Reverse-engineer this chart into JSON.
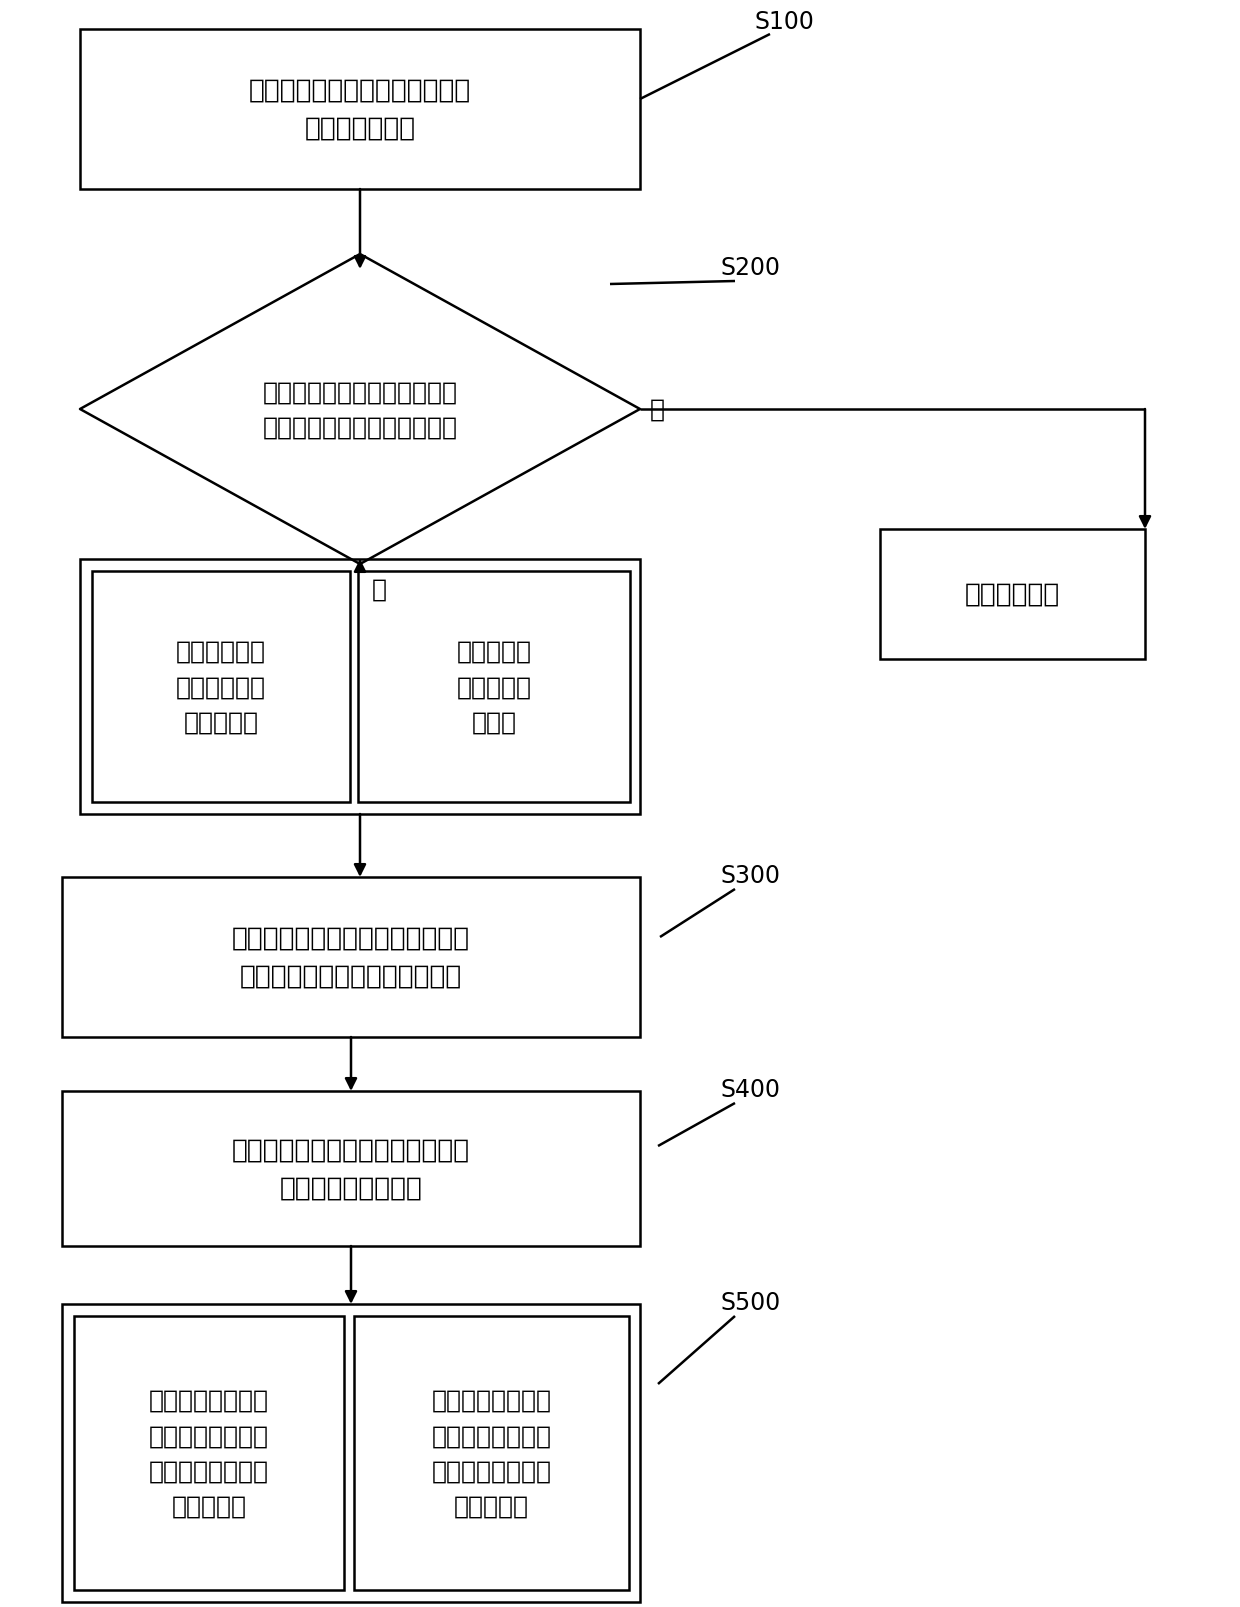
{
  "bg_color": "#ffffff",
  "line_color": "#000000",
  "text_color": "#000000",
  "s100_label": "S100",
  "s200_label": "S200",
  "s300_label": "S300",
  "s400_label": "S400",
  "s500_label": "S500",
  "box1_text": "获取电机模拟器端口的三相电流\n和直流母线电压",
  "diamond_text": "判断三相电流值与直流母线电\n压值是否超过预设的保护阈值",
  "yes_label": "是",
  "no_label": "否",
  "protect_box_text": "执行保护动作",
  "box_left_text": "计算电机模拟\n器应输出的等\n效反电动势",
  "box_right_text": "计算模拟目\n标电机的运\n行状态",
  "box3_text": "控制电机模拟器中的逆变器，使其\n输出与等效反电动势相等的电压",
  "box4_text": "将模拟目标电机的运行状态反馈给\n电机驱动器和上位机",
  "box5_left_text": "根据模拟目标电机\n的运行状态，电机\n驱动器对电机模拟\n器进行控制",
  "box5_right_text": "上位机实时显示电\n机模拟器的运行状\n态，并适时在线调\n整运行参数"
}
